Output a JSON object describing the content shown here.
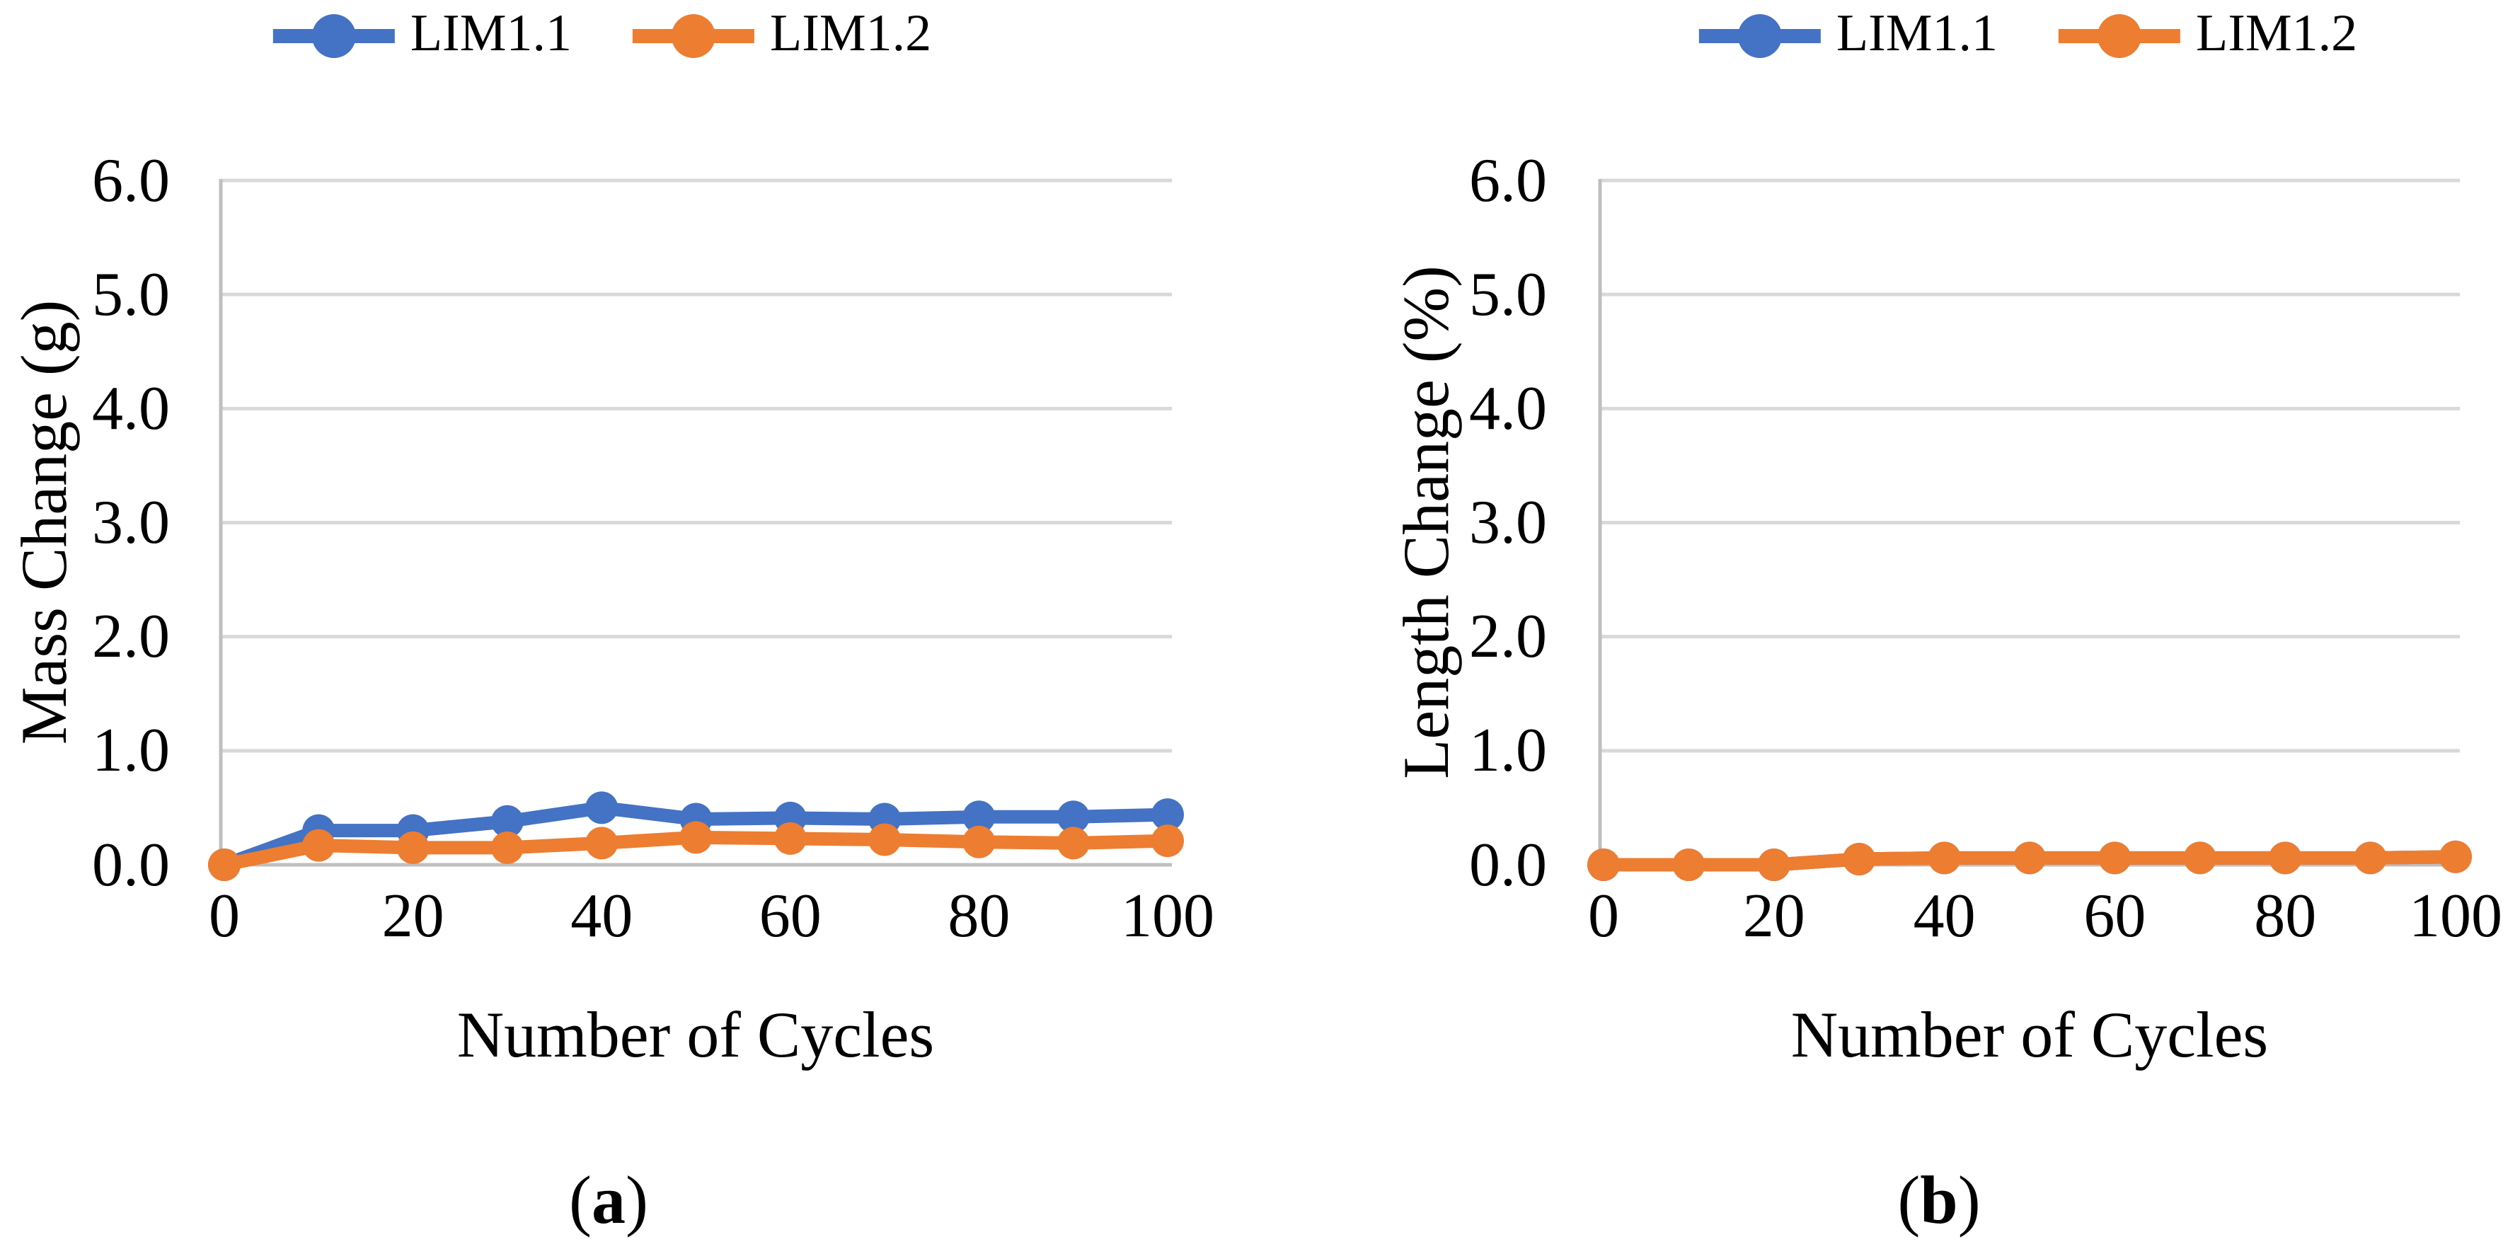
{
  "figure": {
    "background": "#ffffff",
    "text_color": "#000000",
    "axis_color": "#BFBFBF",
    "grid_color": "#D9D9D9"
  },
  "chart_data": [
    {
      "type": "line",
      "title": "",
      "xlabel": "Number of Cycles",
      "ylabel": "Mass Change (g)",
      "xlim": [
        0,
        100
      ],
      "ylim": [
        0,
        6
      ],
      "grid": "horizontal",
      "legend_position": "top",
      "x": [
        0,
        10,
        20,
        30,
        40,
        50,
        60,
        70,
        80,
        90,
        100
      ],
      "xtick_labels": [
        "0",
        "20",
        "40",
        "60",
        "80",
        "100"
      ],
      "xtick_values": [
        0,
        20,
        40,
        60,
        80,
        100
      ],
      "ytick_labels": [
        "6.0",
        "5.0",
        "4.0",
        "3.0",
        "2.0",
        "1.0",
        "0.0"
      ],
      "ytick_values": [
        6,
        5,
        4,
        3,
        2,
        1,
        0
      ],
      "series": [
        {
          "name": "LIM1.1",
          "color": "#4472C4",
          "values": [
            0.0,
            0.3,
            0.3,
            0.38,
            0.5,
            0.4,
            0.41,
            0.4,
            0.42,
            0.42,
            0.44
          ]
        },
        {
          "name": "LIM1.2",
          "color": "#ED7D31",
          "values": [
            0.0,
            0.17,
            0.15,
            0.15,
            0.19,
            0.24,
            0.23,
            0.22,
            0.2,
            0.19,
            0.21
          ]
        }
      ],
      "caption": {
        "open": "(",
        "letter": "a",
        "close": ")"
      }
    },
    {
      "type": "line",
      "title": "",
      "xlabel": "Number of Cycles",
      "ylabel": "Length Change (%)",
      "xlim": [
        0,
        100
      ],
      "ylim": [
        0,
        6
      ],
      "grid": "horizontal",
      "legend_position": "top",
      "x": [
        0,
        10,
        20,
        30,
        40,
        50,
        60,
        70,
        80,
        90,
        100
      ],
      "xtick_labels": [
        "0",
        "20",
        "40",
        "60",
        "80",
        "100"
      ],
      "xtick_values": [
        0,
        20,
        40,
        60,
        80,
        100
      ],
      "ytick_labels": [
        "6.0",
        "5.0",
        "4.0",
        "3.0",
        "2.0",
        "1.0",
        "0.0"
      ],
      "ytick_values": [
        6,
        5,
        4,
        3,
        2,
        1,
        0
      ],
      "series": [
        {
          "name": "LIM1.1",
          "color": "#4472C4",
          "values": [
            0.0,
            0.0,
            0.0,
            0.05,
            0.06,
            0.06,
            0.06,
            0.06,
            0.06,
            0.06,
            0.07
          ]
        },
        {
          "name": "LIM1.2",
          "color": "#ED7D31",
          "values": [
            0.0,
            0.0,
            0.0,
            0.05,
            0.06,
            0.06,
            0.06,
            0.06,
            0.06,
            0.06,
            0.07
          ]
        }
      ],
      "caption": {
        "open": "(",
        "letter": "b",
        "close": ")"
      }
    }
  ]
}
